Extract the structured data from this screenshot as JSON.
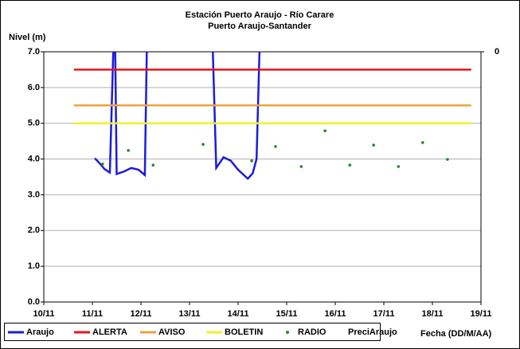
{
  "chart_data": {
    "type": "line",
    "title": "Estación Puerto Araujo - Río Carare",
    "subtitle": "Puerto Araujo-Santander",
    "y_label": "Nivel (m)",
    "x_label": "Fecha (DD/M/AA)",
    "xlim": [
      10,
      19
    ],
    "xticks": [
      {
        "value": 10,
        "label": "10/11"
      },
      {
        "value": 11,
        "label": "11/11"
      },
      {
        "value": 12,
        "label": "12/11"
      },
      {
        "value": 13,
        "label": "13/11"
      },
      {
        "value": 14,
        "label": "14/11"
      },
      {
        "value": 15,
        "label": "15/11"
      },
      {
        "value": 16,
        "label": "16/11"
      },
      {
        "value": 17,
        "label": "17/11"
      },
      {
        "value": 18,
        "label": "18/11"
      },
      {
        "value": 19,
        "label": "19/11"
      }
    ],
    "ylim": [
      0,
      7
    ],
    "yticks": [
      {
        "value": 0,
        "label": "0.0"
      },
      {
        "value": 1,
        "label": "1.0"
      },
      {
        "value": 2,
        "label": "2.0"
      },
      {
        "value": 3,
        "label": "3.0"
      },
      {
        "value": 4,
        "label": "4.0"
      },
      {
        "value": 5,
        "label": "5.0"
      },
      {
        "value": 6,
        "label": "6.0"
      },
      {
        "value": 7,
        "label": "7.0"
      }
    ],
    "y2ticks": [
      0
    ],
    "grid": true,
    "legend": "bottom",
    "series": [
      {
        "name": "Araujo",
        "color": "#1c1cdc",
        "style": "line",
        "x": [
          11.05,
          11.15,
          11.25,
          11.36,
          11.43,
          null,
          11.47,
          11.5,
          11.65,
          11.8,
          11.95,
          12.08,
          12.12,
          null,
          13.48,
          13.55,
          13.7,
          13.85,
          14.0,
          14.2,
          14.3,
          14.38,
          14.44
        ],
        "values": [
          4.02,
          3.88,
          3.72,
          3.62,
          7.0,
          null,
          7.0,
          3.58,
          3.65,
          3.75,
          3.7,
          3.55,
          7.0,
          null,
          7.0,
          3.75,
          4.05,
          3.95,
          3.7,
          3.45,
          3.6,
          4.0,
          7.0
        ]
      },
      {
        "name": "ALERTA",
        "color": "#e8141c",
        "style": "line",
        "x": [
          10.62,
          18.8
        ],
        "values": [
          6.5,
          6.5
        ]
      },
      {
        "name": "AVISO",
        "color": "#f0a040",
        "style": "line",
        "x": [
          10.62,
          18.8
        ],
        "values": [
          5.5,
          5.5
        ]
      },
      {
        "name": "BOLETIN",
        "color": "#f4f028",
        "style": "line",
        "x": [
          10.62,
          18.8
        ],
        "values": [
          5.0,
          5.0
        ]
      },
      {
        "name": "RADIO",
        "color": "#1f8a2e",
        "style": "markers",
        "x": [
          11.21,
          11.74,
          12.25,
          13.28,
          14.28,
          14.77,
          15.3,
          15.79,
          16.3,
          16.79,
          17.3,
          17.8,
          18.31
        ],
        "values": [
          3.86,
          4.24,
          3.83,
          4.41,
          3.95,
          4.35,
          3.79,
          4.79,
          3.83,
          4.39,
          3.79,
          4.46,
          3.99
        ]
      },
      {
        "name": "PreciAraujo",
        "color": "#000000",
        "style": "none",
        "axis": "y2",
        "x": [],
        "values": []
      }
    ]
  }
}
